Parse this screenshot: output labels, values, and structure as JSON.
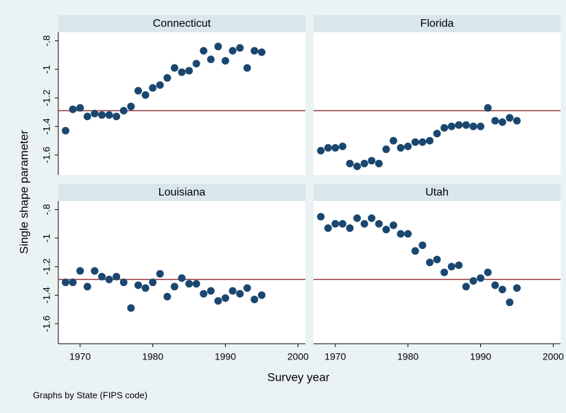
{
  "chart_data": [
    {
      "type": "scatter",
      "title": "Connecticut",
      "x": [
        1968,
        1969,
        1970,
        1971,
        1972,
        1973,
        1974,
        1975,
        1976,
        1977,
        1978,
        1979,
        1980,
        1981,
        1982,
        1983,
        1984,
        1985,
        1986,
        1987,
        1988,
        1989,
        1990,
        1991,
        1992,
        1993,
        1994,
        1995
      ],
      "y": [
        -1.43,
        -1.28,
        -1.27,
        -1.33,
        -1.31,
        -1.32,
        -1.32,
        -1.33,
        -1.29,
        -1.26,
        -1.15,
        -1.18,
        -1.13,
        -1.11,
        -1.06,
        -0.99,
        -1.02,
        -1.01,
        -0.96,
        -0.87,
        -0.93,
        -0.84,
        -0.94,
        -0.87,
        -0.85,
        -0.99,
        -0.87,
        -0.88
      ],
      "color": "#1a476f",
      "xlim": [
        1967,
        2001
      ],
      "ylim": [
        -1.74,
        -0.74
      ],
      "yticks": [
        {
          "value": -0.8,
          "label": "-.8"
        },
        -1,
        -1.2,
        -1.4,
        -1.6
      ],
      "yline": -1.29,
      "yline_color": "#90353b"
    },
    {
      "type": "scatter",
      "title": "Florida",
      "x": [
        1968,
        1969,
        1970,
        1971,
        1972,
        1973,
        1974,
        1975,
        1976,
        1977,
        1978,
        1979,
        1980,
        1981,
        1982,
        1983,
        1984,
        1985,
        1986,
        1987,
        1988,
        1989,
        1990,
        1991,
        1992,
        1993,
        1994,
        1995
      ],
      "y": [
        -1.57,
        -1.55,
        -1.55,
        -1.54,
        -1.66,
        -1.68,
        -1.66,
        -1.64,
        -1.66,
        -1.56,
        -1.5,
        -1.55,
        -1.54,
        -1.51,
        -1.51,
        -1.5,
        -1.45,
        -1.41,
        -1.4,
        -1.39,
        -1.39,
        -1.4,
        -1.4,
        -1.27,
        -1.36,
        -1.37,
        -1.34,
        -1.36
      ],
      "color": "#1a476f",
      "xlim": [
        1967,
        2001
      ],
      "ylim": [
        -1.74,
        -0.74
      ],
      "yline": -1.29,
      "yline_color": "#90353b"
    },
    {
      "type": "scatter",
      "title": "Louisiana",
      "x": [
        1968,
        1969,
        1970,
        1971,
        1972,
        1973,
        1974,
        1975,
        1976,
        1977,
        1978,
        1979,
        1980,
        1981,
        1982,
        1983,
        1984,
        1985,
        1986,
        1987,
        1988,
        1989,
        1990,
        1991,
        1992,
        1993,
        1994,
        1995
      ],
      "y": [
        -1.31,
        -1.31,
        -1.23,
        -1.34,
        -1.23,
        -1.27,
        -1.29,
        -1.27,
        -1.31,
        -1.49,
        -1.33,
        -1.35,
        -1.31,
        -1.25,
        -1.41,
        -1.34,
        -1.28,
        -1.32,
        -1.32,
        -1.39,
        -1.37,
        -1.44,
        -1.42,
        -1.37,
        -1.39,
        -1.35,
        -1.43,
        -1.4
      ],
      "color": "#1a476f",
      "xlim": [
        1967,
        2001
      ],
      "ylim": [
        -1.74,
        -0.74
      ],
      "xticks": [
        1970,
        1980,
        1990,
        2000
      ],
      "yticks": [
        {
          "value": -0.8,
          "label": "-.8"
        },
        -1,
        -1.2,
        -1.4,
        -1.6
      ],
      "yline": -1.29,
      "yline_color": "#90353b"
    },
    {
      "type": "scatter",
      "title": "Utah",
      "x": [
        1968,
        1969,
        1970,
        1971,
        1972,
        1973,
        1974,
        1975,
        1976,
        1977,
        1978,
        1979,
        1980,
        1981,
        1982,
        1983,
        1984,
        1985,
        1986,
        1987,
        1988,
        1989,
        1990,
        1991,
        1992,
        1993,
        1994,
        1995
      ],
      "y": [
        -0.85,
        -0.93,
        -0.9,
        -0.9,
        -0.93,
        -0.86,
        -0.9,
        -0.86,
        -0.9,
        -0.94,
        -0.91,
        -0.97,
        -0.97,
        -1.09,
        -1.05,
        -1.17,
        -1.15,
        -1.24,
        -1.2,
        -1.19,
        -1.34,
        -1.3,
        -1.28,
        -1.24,
        -1.33,
        -1.36,
        -1.45,
        -1.35
      ],
      "color": "#1a476f",
      "xlim": [
        1967,
        2001
      ],
      "ylim": [
        -1.74,
        -0.74
      ],
      "xticks": [
        1970,
        1980,
        1990,
        2000
      ],
      "yline": -1.29,
      "yline_color": "#90353b"
    }
  ],
  "ylabel": "Single shape parameter",
  "xlabel": "Survey year",
  "note": "Graphs by State (FIPS code)"
}
